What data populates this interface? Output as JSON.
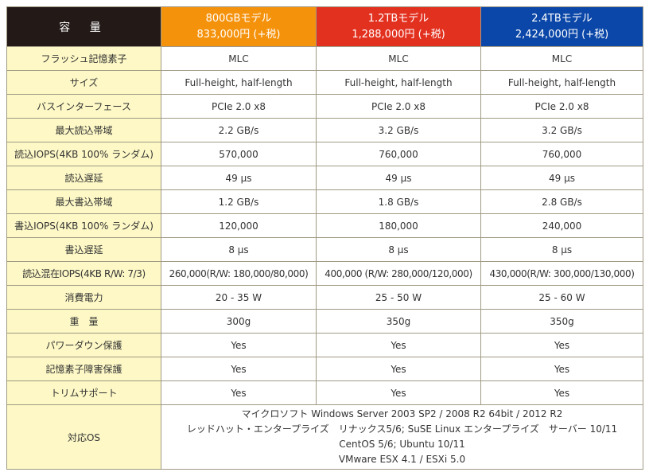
{
  "header": {
    "label": "容 量",
    "models": [
      {
        "name": "800GBモデル",
        "price": "833,000円 (+税)",
        "color": "#f5920c"
      },
      {
        "name": "1.2TBモデル",
        "price": "1,288,000円 (+税)",
        "color": "#e33120"
      },
      {
        "name": "2.4TBモデル",
        "price": "2,424,000円 (+税)",
        "color": "#0b47a8"
      }
    ]
  },
  "rows": [
    {
      "label": "フラッシュ記憶素子",
      "values": [
        "MLC",
        "MLC",
        "MLC"
      ]
    },
    {
      "label": "サイズ",
      "values": [
        "Full-height, half-length",
        "Full-height, half-length",
        "Full-height, half-length"
      ]
    },
    {
      "label": "バスインターフェース",
      "values": [
        "PCIe 2.0 x8",
        "PCIe 2.0 x8",
        "PCIe 2.0 x8"
      ]
    },
    {
      "label": "最大読込帯域",
      "values": [
        "2.2 GB/s",
        "3.2 GB/s",
        "3.2 GB/s"
      ]
    },
    {
      "label": "読込IOPS(4KB 100% ランダム)",
      "values": [
        "570,000",
        "760,000",
        "760,000"
      ]
    },
    {
      "label": "読込遅延",
      "values": [
        "49 μs",
        "49 μs",
        "49 μs"
      ]
    },
    {
      "label": "最大書込帯域",
      "values": [
        "1.2 GB/s",
        "1.8 GB/s",
        "2.8 GB/s"
      ]
    },
    {
      "label": "書込IOPS(4KB 100% ランダム)",
      "values": [
        "120,000",
        "180,000",
        "240,000"
      ]
    },
    {
      "label": "書込遅延",
      "values": [
        "8 μs",
        "8 μs",
        "8 μs"
      ]
    },
    {
      "label": "読込混在IOPS(4KB R/W: 7/3)",
      "values": [
        "260,000(R/W: 180,000/80,000)",
        "400,000 (R/W: 280,000/120,000)",
        "430,000(R/W: 300,000/130,000)"
      ]
    },
    {
      "label": "消費電力",
      "values": [
        "20 - 35 W",
        "25 - 50 W",
        "25 - 60 W"
      ]
    },
    {
      "label": "重　量",
      "values": [
        "300g",
        "350g",
        "350g"
      ]
    },
    {
      "label": "パワーダウン保護",
      "values": [
        "Yes",
        "Yes",
        "Yes"
      ]
    },
    {
      "label": "記憶素子障害保護",
      "values": [
        "Yes",
        "Yes",
        "Yes"
      ]
    },
    {
      "label": "トリムサポート",
      "values": [
        "Yes",
        "Yes",
        "Yes"
      ]
    }
  ],
  "os": {
    "label": "対応OS",
    "lines": [
      "マイクロソフト Windows Server 2003 SP2 / 2008 R2 64bit / 2012 R2",
      "レッドハット・エンタープライズ　リナックス5/6; SuSE Linux エンタープライズ　サーバー 10/11",
      "CentOS 5/6; Ubuntu 10/11",
      "VMware ESX 4.1 / ESXi 5.0"
    ]
  }
}
